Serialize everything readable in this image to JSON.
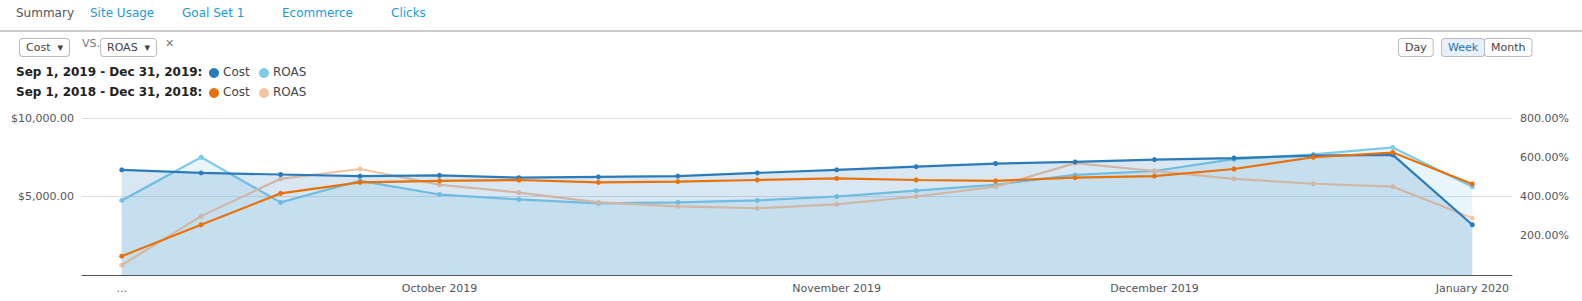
{
  "chart_data": {
    "type": "line",
    "annotations": [
      {
        "text": "Summary",
        "color": "#555555"
      },
      {
        "text": "Site Usage",
        "color": "#1a9cd8"
      },
      {
        "text": "Goal Set 1",
        "color": "#1a9cd8"
      },
      {
        "text": "Ecommerce",
        "color": "#1a9cd8"
      },
      {
        "text": "Clicks",
        "color": "#1a9cd8"
      },
      {
        "text": "Cost  ▾"
      },
      {
        "text": "VS."
      },
      {
        "text": "ROAS  ▾"
      },
      {
        "text": "✕"
      },
      {
        "text": "Day"
      },
      {
        "text": "Week"
      },
      {
        "text": "Month"
      }
    ],
    "categories": [
      "...",
      null,
      null,
      null,
      "October 2019",
      null,
      null,
      null,
      null,
      "November 2019",
      null,
      null,
      null,
      "December 2019",
      null,
      null,
      null,
      "January 2020"
    ],
    "series": [
      {
        "name": "Cost",
        "group": "Sep 1, 2019 - Dec 31, 2019:",
        "type": "area",
        "color": "#2b7bba",
        "values": [
          6700,
          6500,
          6400,
          6300,
          6350,
          6200,
          6250,
          6300,
          6500,
          6700,
          6900,
          7100,
          7200,
          7350,
          7450,
          7600,
          7650,
          3200
        ]
      },
      {
        "name": "Cost",
        "group": "Sep 1, 2018 - Dec 31, 2018:",
        "type": "line",
        "color": "#e8710a",
        "values": [
          1200,
          3200,
          5200,
          5900,
          6000,
          6050,
          5900,
          5950,
          6050,
          6150,
          6050,
          6000,
          6200,
          6300,
          6750,
          7500,
          7800,
          5800
        ]
      },
      {
        "name": "ROAS",
        "group": "Sep 1, 2019 - Dec 31, 2019:",
        "type": "area",
        "color": "#7ecbea",
        "axis": "y2",
        "values": [
          380,
          600,
          370,
          480,
          410,
          385,
          365,
          370,
          380,
          400,
          430,
          460,
          510,
          530,
          590,
          615,
          650,
          450
        ]
      },
      {
        "name": "ROAS",
        "group": "Sep 1, 2018 - Dec 31, 2018:",
        "type": "line",
        "color": "#f5c4a0",
        "axis": "y2",
        "values": [
          50,
          300,
          490,
          540,
          460,
          420,
          370,
          350,
          340,
          360,
          400,
          450,
          570,
          530,
          490,
          465,
          450,
          290
        ]
      }
    ],
    "ylim": [
      0,
      10000
    ],
    "yticks": [
      {
        "value": 5000,
        "label": "$5,000.00"
      },
      {
        "value": 10000,
        "label": "$10,000.00"
      }
    ],
    "y2lim": [
      0,
      800
    ],
    "y2ticks": [
      {
        "value": 200,
        "label": "200.00%"
      },
      {
        "value": 400,
        "label": "400.00%"
      },
      {
        "value": 600,
        "label": "600.00%"
      },
      {
        "value": 800,
        "label": "800.00%"
      }
    ],
    "marker": "circle",
    "grid": true
  }
}
